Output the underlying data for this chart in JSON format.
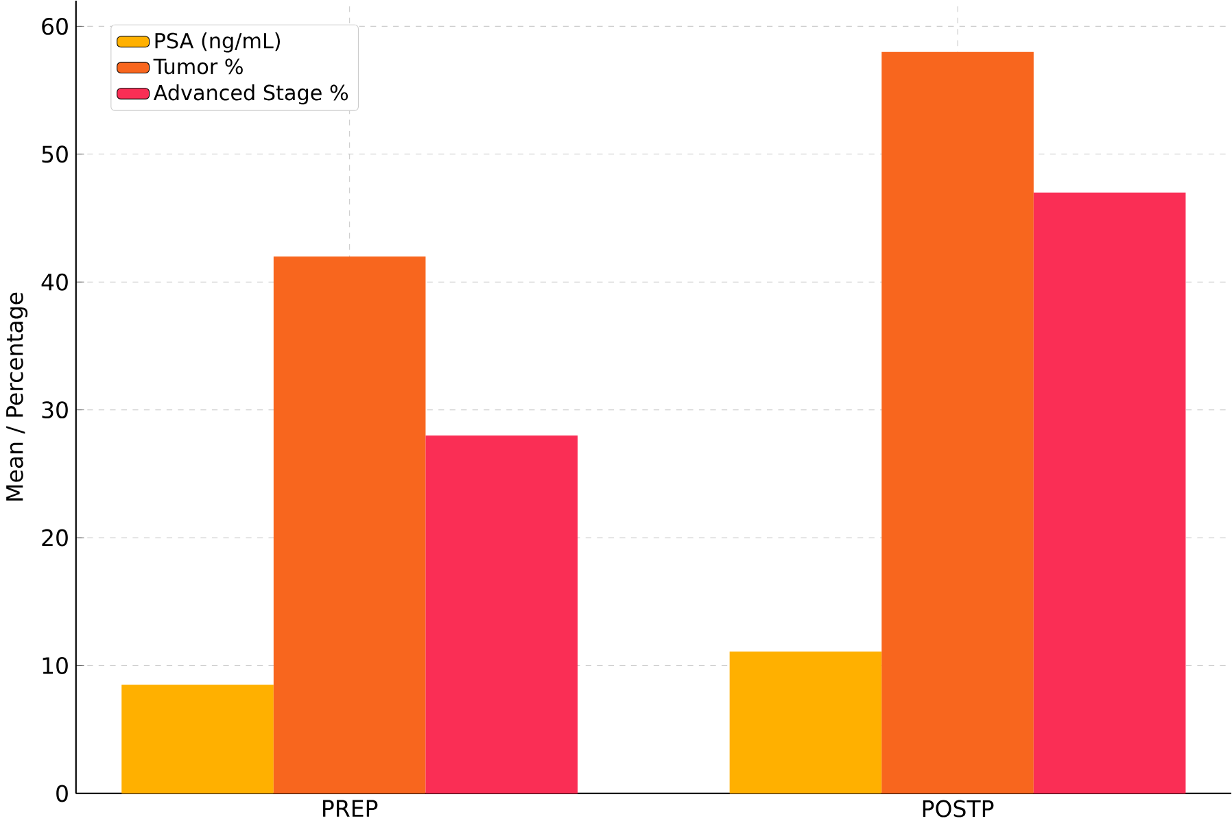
{
  "chart_data": {
    "type": "bar",
    "ylabel": "Mean / Percentage",
    "categories": [
      "PREP",
      "POSTP"
    ],
    "series": [
      {
        "name": "PSA (ng/mL)",
        "color": "#ffb000",
        "values": [
          8.5,
          11.1
        ]
      },
      {
        "name": "Tumor %",
        "color": "#f8661e",
        "values": [
          42,
          58
        ]
      },
      {
        "name": "Advanced Stage %",
        "color": "#fa2e55",
        "values": [
          28,
          47
        ]
      }
    ],
    "ylim": [
      0,
      62
    ],
    "yticks": [
      0,
      10,
      20,
      30,
      40,
      50,
      60
    ],
    "grid": true,
    "legend": "top left"
  }
}
